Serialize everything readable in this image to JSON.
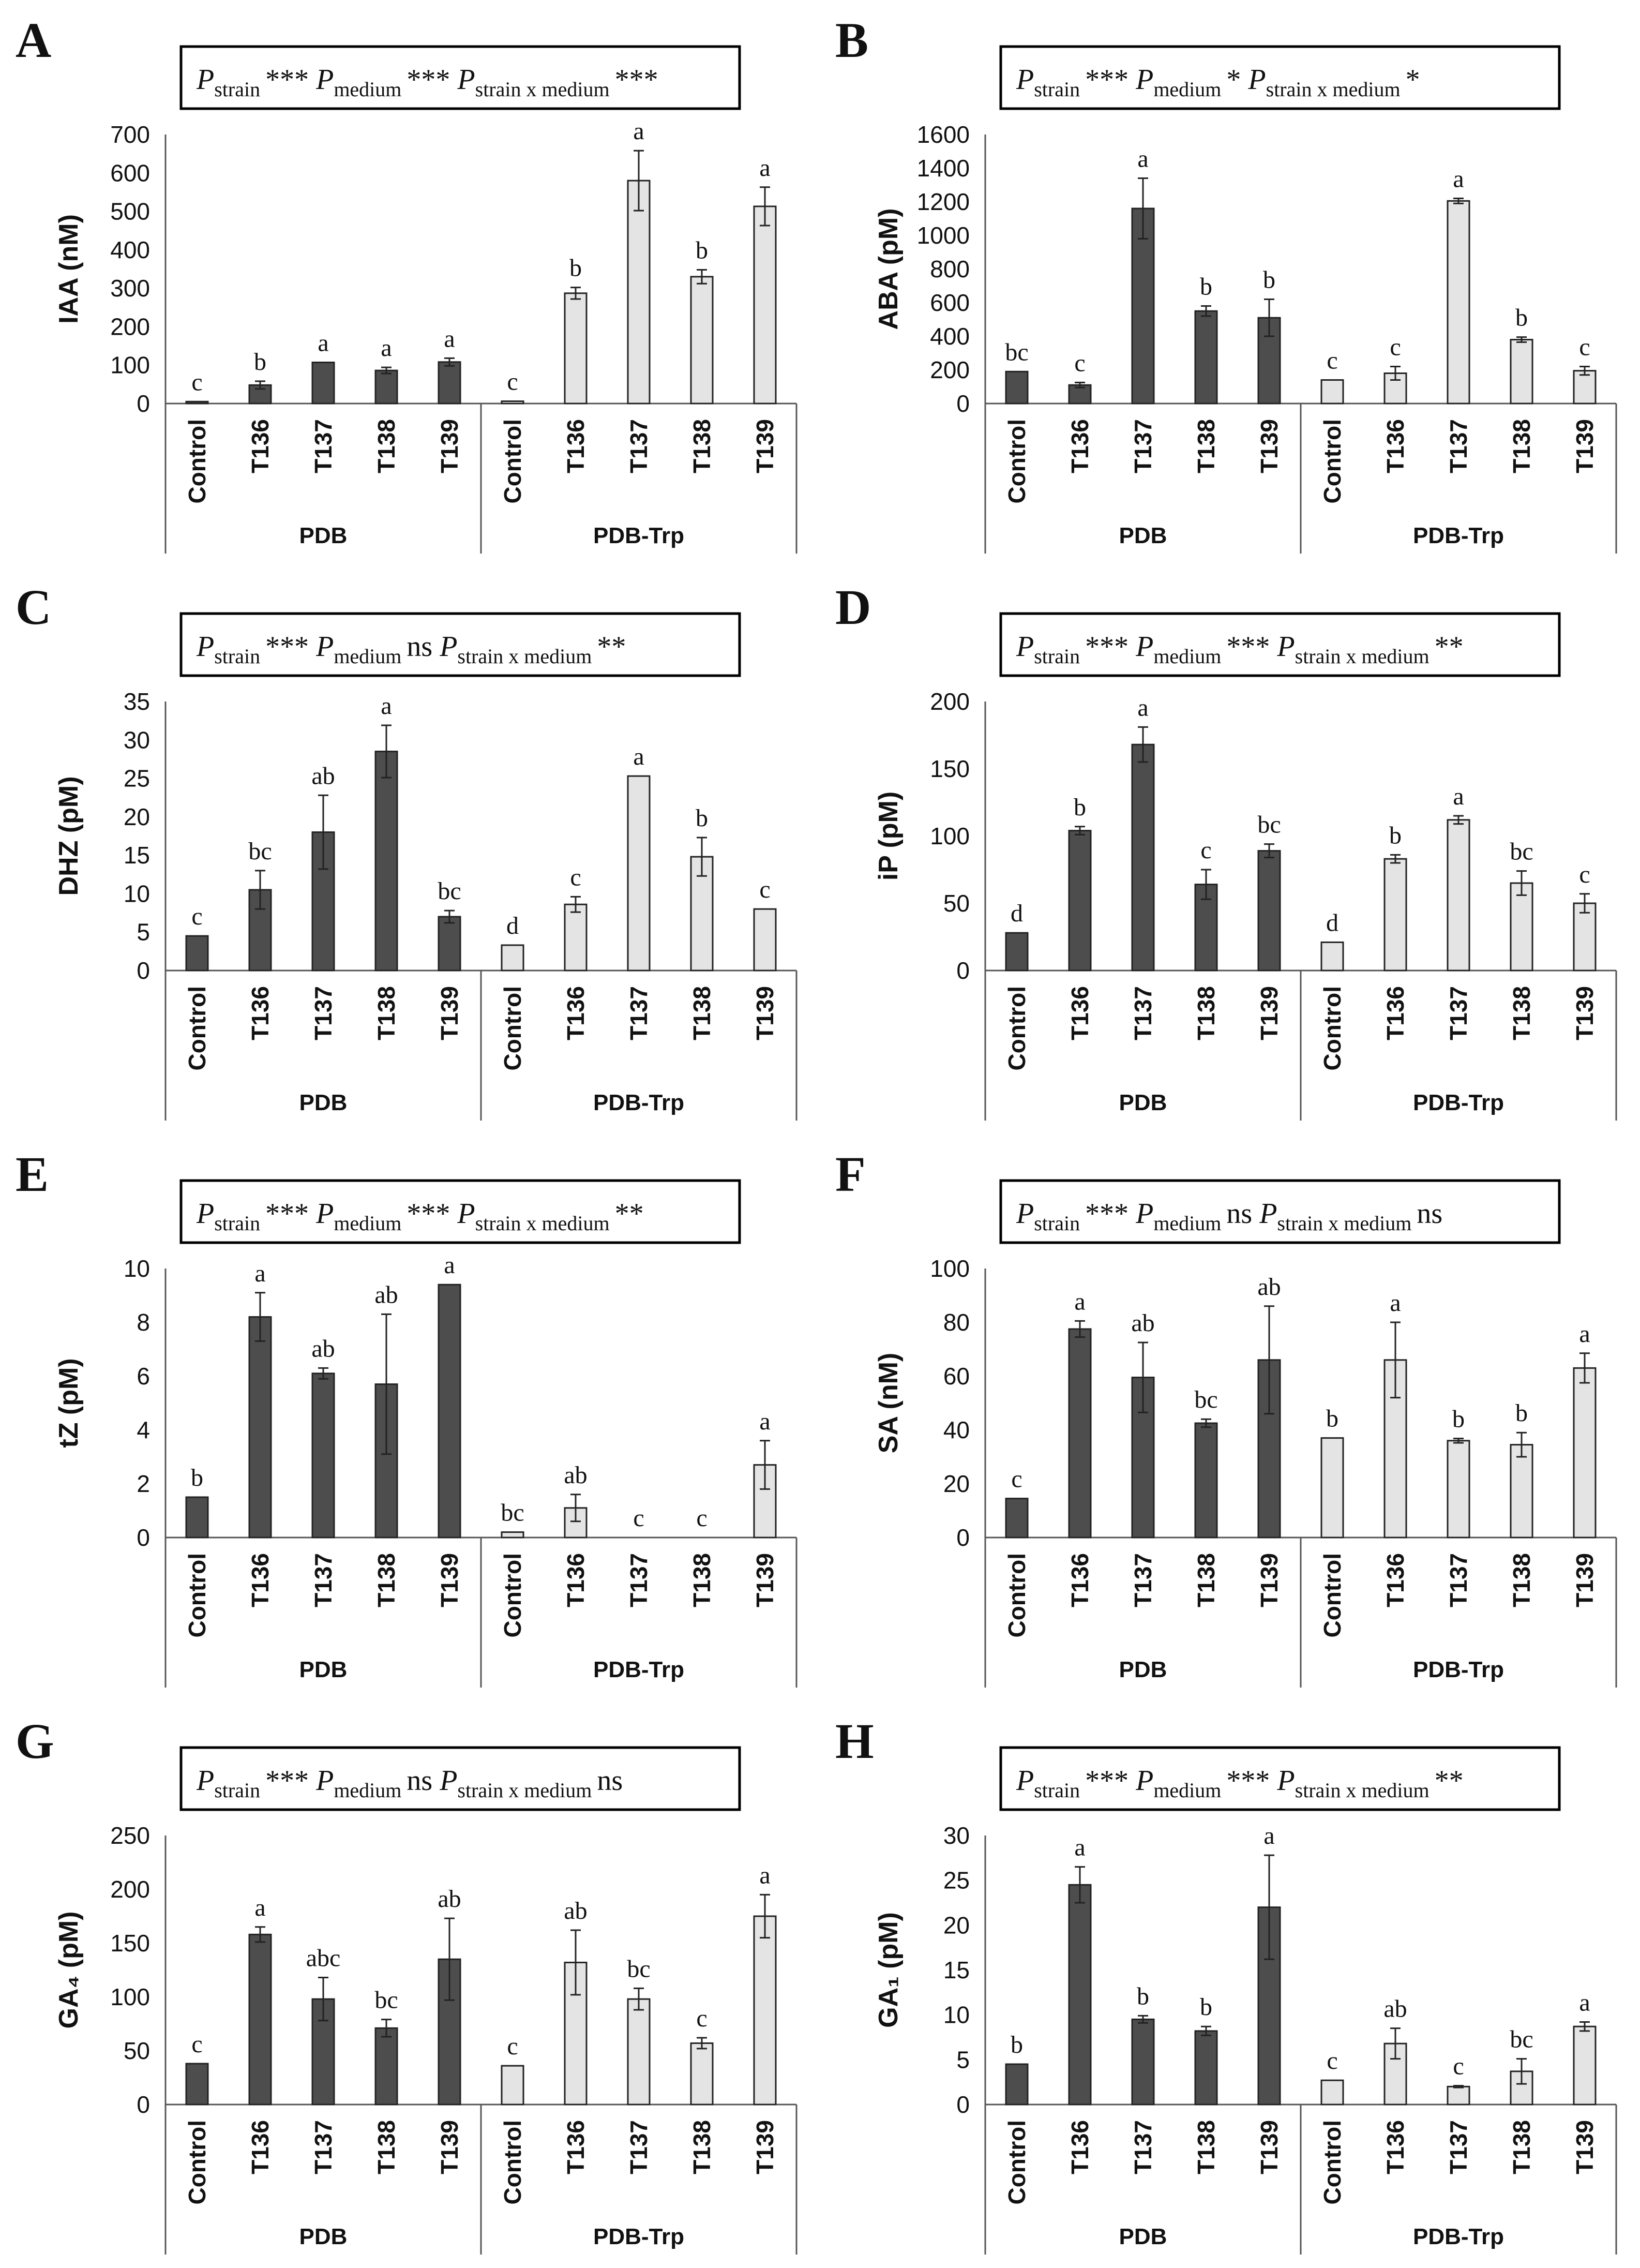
{
  "figure": {
    "categories": [
      "Control",
      "T136",
      "T137",
      "T138",
      "T139"
    ],
    "groups": [
      "PDB",
      "PDB-Trp"
    ],
    "colors": {
      "PDB": "#4d4d4d",
      "PDB-Trp": "#e4e4e4"
    }
  },
  "chart_data": [
    {
      "panel": "A",
      "type": "bar",
      "ylabel": "IAA (nM)",
      "ylim": [
        0,
        700
      ],
      "yticks": [
        0,
        100,
        200,
        300,
        400,
        500,
        600,
        700
      ],
      "stats": [
        [
          "strain",
          "***"
        ],
        [
          "medium",
          "***"
        ],
        [
          "strain x medium",
          "***"
        ]
      ],
      "series": [
        {
          "name": "PDB",
          "values": [
            5,
            48,
            107,
            86,
            108
          ],
          "errors": [
            0,
            10,
            0,
            8,
            10
          ],
          "letters": [
            "c",
            "b",
            "a",
            "a",
            "a"
          ]
        },
        {
          "name": "PDB-Trp",
          "values": [
            6,
            287,
            580,
            330,
            513
          ],
          "errors": [
            0,
            15,
            78,
            18,
            50
          ],
          "letters": [
            "c",
            "b",
            "a",
            "b",
            "a"
          ]
        }
      ]
    },
    {
      "panel": "B",
      "type": "bar",
      "ylabel": "ABA (pM)",
      "ylim": [
        0,
        1600
      ],
      "yticks": [
        0,
        200,
        400,
        600,
        800,
        1000,
        1200,
        1400,
        1600
      ],
      "stats": [
        [
          "strain",
          "***"
        ],
        [
          "medium",
          "*"
        ],
        [
          "strain x medium",
          "*"
        ]
      ],
      "series": [
        {
          "name": "PDB",
          "values": [
            190,
            110,
            1160,
            550,
            510
          ],
          "errors": [
            0,
            15,
            180,
            30,
            110
          ],
          "letters": [
            "bc",
            "c",
            "a",
            "b",
            "b"
          ]
        },
        {
          "name": "PDB-Trp",
          "values": [
            140,
            180,
            1205,
            380,
            195
          ],
          "errors": [
            0,
            40,
            15,
            15,
            25
          ],
          "letters": [
            "c",
            "c",
            "a",
            "b",
            "c"
          ]
        }
      ]
    },
    {
      "panel": "C",
      "type": "bar",
      "ylabel": "DHZ (pM)",
      "ylim": [
        0,
        35
      ],
      "yticks": [
        0,
        5,
        10,
        15,
        20,
        25,
        30,
        35
      ],
      "stats": [
        [
          "strain",
          "***"
        ],
        [
          "medium",
          "ns"
        ],
        [
          "strain x medium",
          "**"
        ]
      ],
      "series": [
        {
          "name": "PDB",
          "values": [
            4.5,
            10.5,
            18,
            28.5,
            7
          ],
          "errors": [
            0,
            2.5,
            4.8,
            3.4,
            0.8
          ],
          "letters": [
            "c",
            "bc",
            "ab",
            "a",
            "bc"
          ]
        },
        {
          "name": "PDB-Trp",
          "values": [
            3.3,
            8.6,
            25.3,
            14.8,
            8
          ],
          "errors": [
            0,
            1,
            0,
            2.5,
            0
          ],
          "letters": [
            "d",
            "c",
            "a",
            "b",
            "c"
          ]
        }
      ]
    },
    {
      "panel": "D",
      "type": "bar",
      "ylabel": "iP (pM)",
      "ylim": [
        0,
        200
      ],
      "yticks": [
        0,
        50,
        100,
        150,
        200
      ],
      "stats": [
        [
          "strain",
          "***"
        ],
        [
          "medium",
          "***"
        ],
        [
          "strain x medium",
          "**"
        ]
      ],
      "series": [
        {
          "name": "PDB",
          "values": [
            28,
            104,
            168,
            64,
            89
          ],
          "errors": [
            0,
            3,
            13,
            11,
            5
          ],
          "letters": [
            "d",
            "b",
            "a",
            "c",
            "bc"
          ]
        },
        {
          "name": "PDB-Trp",
          "values": [
            21,
            83,
            112,
            65,
            50
          ],
          "errors": [
            0,
            3,
            3,
            9,
            7
          ],
          "letters": [
            "d",
            "b",
            "a",
            "bc",
            "c"
          ]
        }
      ]
    },
    {
      "panel": "E",
      "type": "bar",
      "ylabel": "tZ (pM)",
      "ylim": [
        0,
        10
      ],
      "yticks": [
        0,
        2,
        4,
        6,
        8,
        10
      ],
      "stats": [
        [
          "strain",
          "***"
        ],
        [
          "medium",
          "***"
        ],
        [
          "strain x medium",
          "**"
        ]
      ],
      "series": [
        {
          "name": "PDB",
          "values": [
            1.5,
            8.2,
            6.1,
            5.7,
            9.4
          ],
          "errors": [
            0,
            0.9,
            0.2,
            2.6,
            0
          ],
          "letters": [
            "b",
            "a",
            "ab",
            "ab",
            "a"
          ]
        },
        {
          "name": "PDB-Trp",
          "values": [
            0.2,
            1.1,
            0,
            0,
            2.7
          ],
          "errors": [
            0,
            0.5,
            0,
            0,
            0.9
          ],
          "letters": [
            "bc",
            "ab",
            "c",
            "c",
            "a"
          ]
        }
      ]
    },
    {
      "panel": "F",
      "type": "bar",
      "ylabel": "SA (nM)",
      "ylim": [
        0,
        100
      ],
      "yticks": [
        0,
        20,
        40,
        60,
        80,
        100
      ],
      "stats": [
        [
          "strain",
          "***"
        ],
        [
          "medium",
          "ns"
        ],
        [
          "strain x medium",
          "ns"
        ]
      ],
      "series": [
        {
          "name": "PDB",
          "values": [
            14.5,
            77.5,
            59.5,
            42.5,
            66
          ],
          "errors": [
            0,
            3,
            13,
            1.5,
            20
          ],
          "letters": [
            "c",
            "a",
            "ab",
            "bc",
            "ab"
          ]
        },
        {
          "name": "PDB-Trp",
          "values": [
            37,
            66,
            36,
            34.5,
            63
          ],
          "errors": [
            0,
            14,
            0.8,
            4.5,
            5.5
          ],
          "letters": [
            "b",
            "a",
            "b",
            "b",
            "a"
          ]
        }
      ]
    },
    {
      "panel": "G",
      "type": "bar",
      "ylabel": "GA₄ (pM)",
      "ylim": [
        0,
        250
      ],
      "yticks": [
        0,
        50,
        100,
        150,
        200,
        250
      ],
      "stats": [
        [
          "strain",
          "***"
        ],
        [
          "medium",
          "ns"
        ],
        [
          "strain x medium",
          "ns"
        ]
      ],
      "series": [
        {
          "name": "PDB",
          "values": [
            38,
            158,
            98,
            71,
            135
          ],
          "errors": [
            0,
            7,
            20,
            8,
            38
          ],
          "letters": [
            "c",
            "a",
            "abc",
            "bc",
            "ab"
          ]
        },
        {
          "name": "PDB-Trp",
          "values": [
            36,
            132,
            98,
            57,
            175
          ],
          "errors": [
            0,
            30,
            10,
            5,
            20
          ],
          "letters": [
            "c",
            "ab",
            "bc",
            "c",
            "a"
          ]
        }
      ]
    },
    {
      "panel": "H",
      "type": "bar",
      "ylabel": "GA₁ (pM)",
      "ylim": [
        0,
        30
      ],
      "yticks": [
        0,
        5,
        10,
        15,
        20,
        25,
        30
      ],
      "stats": [
        [
          "strain",
          "***"
        ],
        [
          "medium",
          "***"
        ],
        [
          "strain x medium",
          "**"
        ]
      ],
      "series": [
        {
          "name": "PDB",
          "values": [
            4.5,
            24.5,
            9.5,
            8.2,
            22
          ],
          "errors": [
            0,
            2,
            0.4,
            0.5,
            5.8
          ],
          "letters": [
            "b",
            "a",
            "b",
            "b",
            "a"
          ]
        },
        {
          "name": "PDB-Trp",
          "values": [
            2.7,
            6.8,
            2,
            3.7,
            8.7
          ],
          "errors": [
            0,
            1.7,
            0.1,
            1.4,
            0.5
          ],
          "letters": [
            "c",
            "ab",
            "c",
            "bc",
            "a"
          ]
        }
      ]
    }
  ]
}
